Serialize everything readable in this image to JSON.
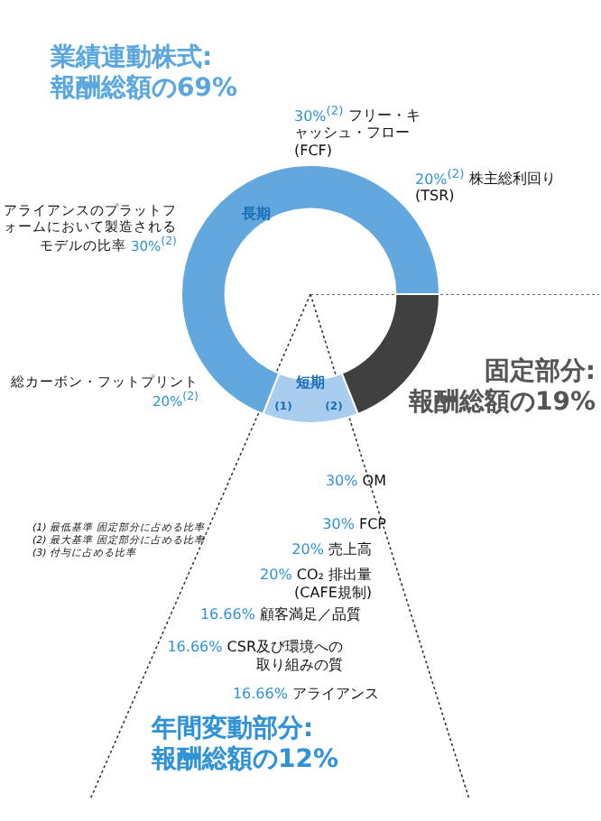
{
  "chart_data": {
    "type": "donut",
    "categories": [
      null,
      "短期",
      "長期"
    ],
    "values": [
      19,
      12,
      69
    ],
    "colors": [
      "#404040",
      "#a9cdee",
      "#62a8de"
    ],
    "legend": false,
    "annotations": [
      "業績連動株式: 報酬総額の69%",
      "30%$^{(2)}$ フリー・キャッシュ・フロー (FCF)",
      "20%$^{(2)}$ 株主総利回り (TSR)",
      "アライアンスのプラットフォームにおいて製造されるモデルの比率 30%$^{(2)}$",
      "総カーボン・フットプリント 20%$^{(2)}$",
      "固定部分: 報酬総額の19%",
      "30% OM",
      "30% FCP",
      "20% 売上高",
      "20% CO₂ 排出量 (CAFE規制)",
      "16.66% 顧客満足／品質",
      "16.66% CSR及び環境への取り組みの質",
      "16.66% アライアンス",
      "(1) 最低基準 固定部分に占める比率",
      "(2) 最大基準 固定部分に占める比率",
      "(3) 付与に占める比率",
      "年間変動部分: 報酬総額の12%",
      "(1)",
      "(2)"
    ]
  }
}
